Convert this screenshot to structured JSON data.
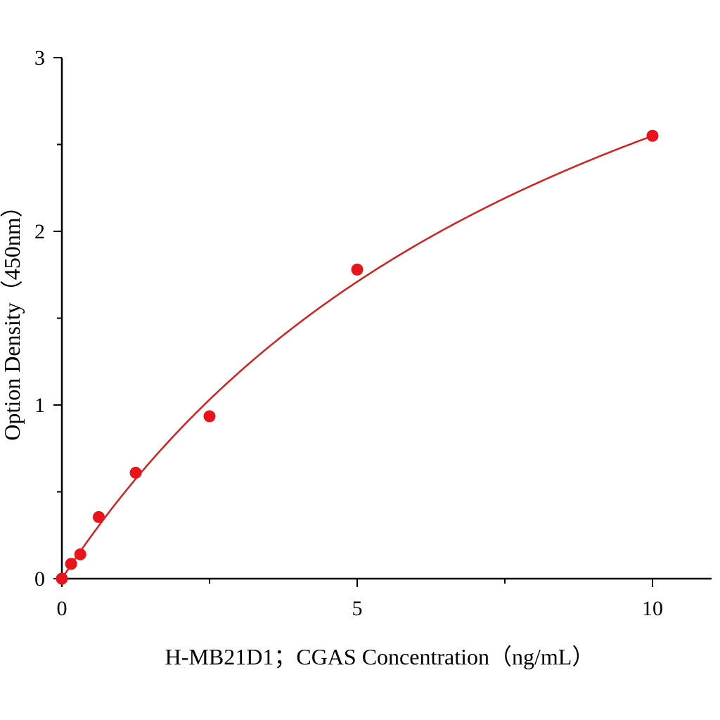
{
  "chart_data": {
    "type": "scatter",
    "title": "",
    "xlabel": "H-MB21D1；CGAS Concentration（ng/mL）",
    "ylabel": "Option Density（450nm）",
    "xlim": [
      0,
      11
    ],
    "ylim": [
      0,
      3
    ],
    "x_ticks": [
      0,
      5,
      10
    ],
    "x_tick_labels": [
      "0",
      "5",
      "10"
    ],
    "x_minor_ticks": [
      2.5,
      7.5
    ],
    "y_ticks": [
      0,
      1,
      2,
      3
    ],
    "y_tick_labels": [
      "0",
      "1",
      "2",
      "3"
    ],
    "y_minor_ticks": [
      0.5,
      1.5,
      2.5
    ],
    "grid": false,
    "legend": "none",
    "series": [
      {
        "x": [
          0,
          0.156,
          0.312,
          0.625,
          1.25,
          2.5,
          5,
          10
        ],
        "y": [
          0.0,
          0.085,
          0.14,
          0.355,
          0.61,
          0.935,
          1.78,
          2.55
        ],
        "color": "#e8141a",
        "marker": "circle"
      }
    ],
    "fit_curve": {
      "model": "y = a*x/(b+x)",
      "a": 5.01,
      "b": 9.65,
      "x_range": [
        0,
        10
      ],
      "color": "#d42020"
    }
  }
}
